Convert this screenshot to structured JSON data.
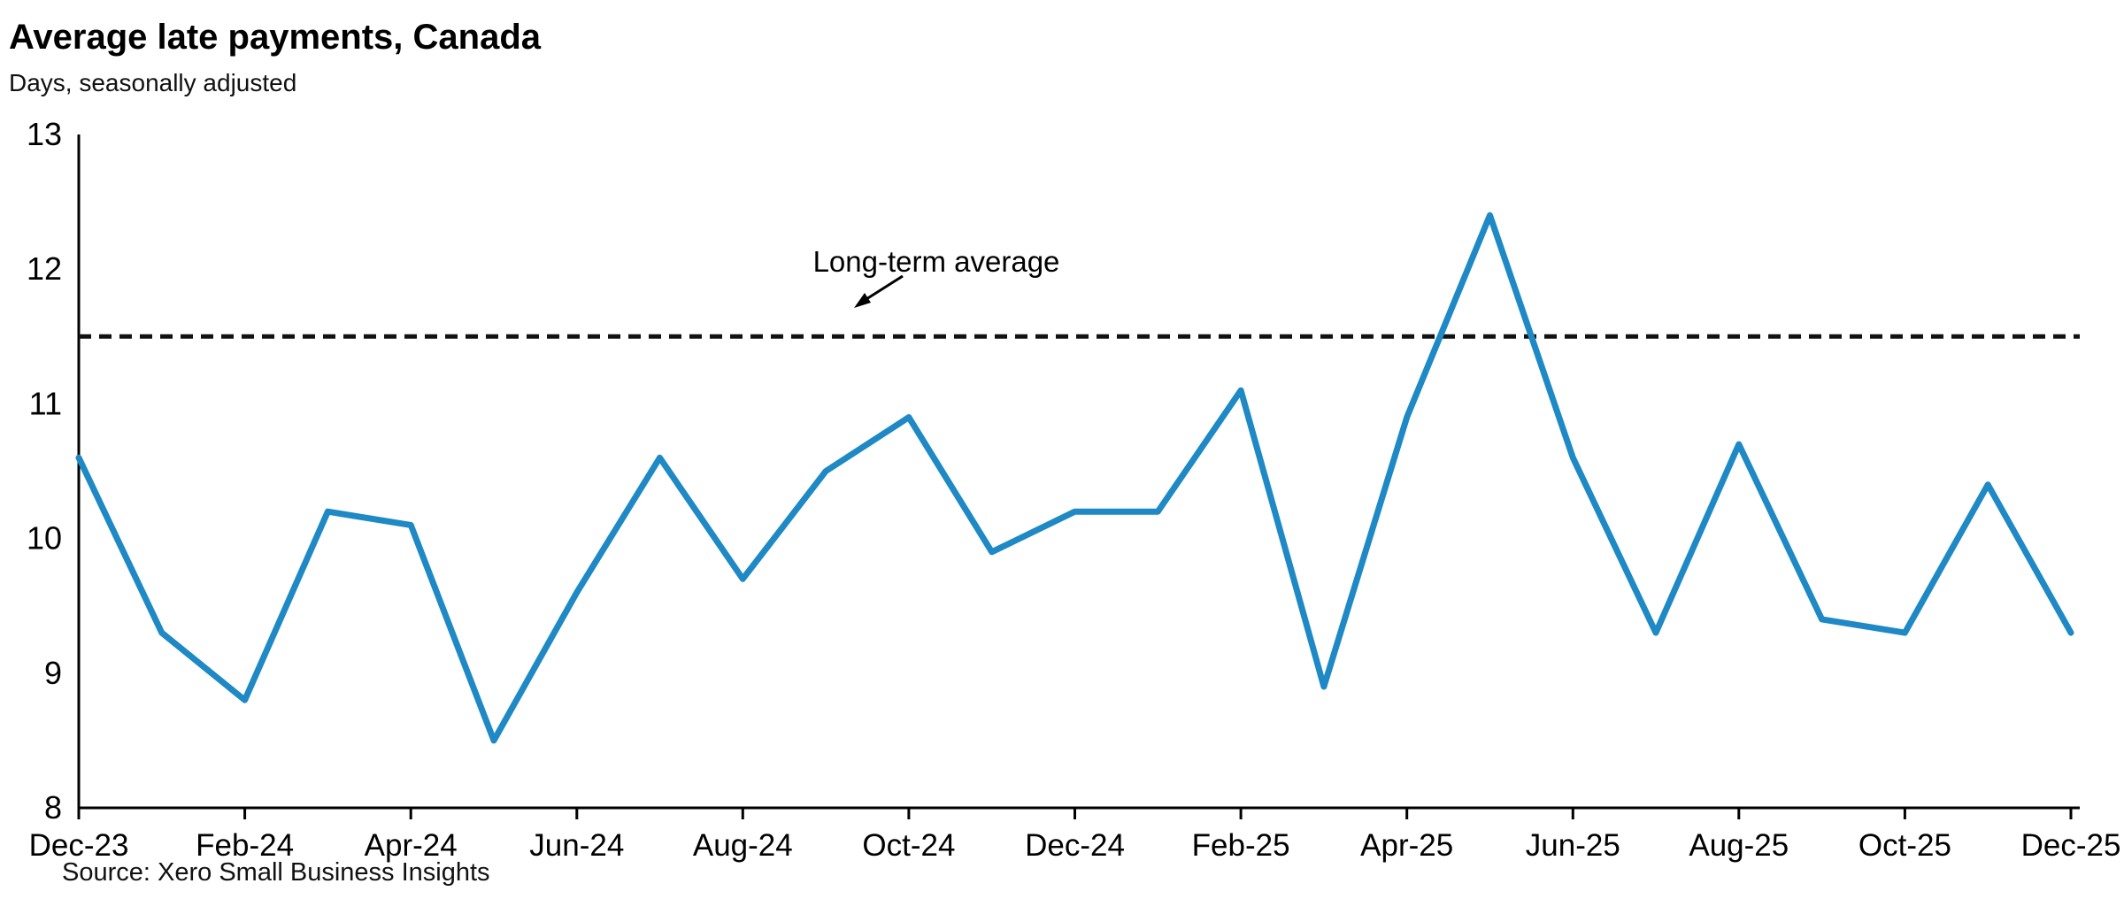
{
  "header": {
    "title": "Average late payments, Canada",
    "subtitle": "Days, seasonally adjusted"
  },
  "footer": {
    "source": "Source: Xero Small Business Insights"
  },
  "chart_data": {
    "type": "line",
    "title": "Average late payments, Canada",
    "subtitle": "Days, seasonally adjusted",
    "x": [
      "Dec-23",
      "Jan-24",
      "Feb-24",
      "Mar-24",
      "Apr-24",
      "May-24",
      "Jun-24",
      "Jul-24",
      "Aug-24",
      "Sep-24",
      "Oct-24",
      "Nov-24",
      "Dec-24",
      "Jan-25",
      "Feb-25",
      "Mar-25",
      "Apr-25",
      "May-25",
      "Jun-25",
      "Jul-25",
      "Aug-25",
      "Sep-25",
      "Oct-25",
      "Nov-25",
      "Dec-25"
    ],
    "series": [
      {
        "name": "Average late payments (days, seasonally adjusted)",
        "values": [
          10.6,
          9.3,
          8.8,
          10.2,
          10.1,
          8.5,
          9.6,
          10.6,
          9.7,
          10.5,
          10.9,
          9.9,
          10.2,
          10.2,
          11.1,
          8.9,
          10.9,
          12.4,
          10.6,
          9.3,
          10.7,
          9.4,
          9.3,
          10.4,
          9.3
        ]
      }
    ],
    "reference_line": {
      "label": "Long-term average",
      "value": 11.5,
      "style": "dashed"
    },
    "ylim": [
      8,
      13
    ],
    "yticks": [
      8,
      9,
      10,
      11,
      12,
      13
    ],
    "xtick_labels": [
      "Dec-23",
      "Feb-24",
      "Apr-24",
      "Jun-24",
      "Aug-24",
      "Oct-24",
      "Dec-24",
      "Feb-25",
      "Apr-25",
      "Jun-25",
      "Aug-25",
      "Oct-25",
      "Dec-25"
    ],
    "xtick_step": 2,
    "line_color": "#1e89c5",
    "reference_color": "#111111",
    "axis_color": "#000000",
    "grid": false,
    "legend": "none",
    "source": "Source: Xero Small Business Insights"
  }
}
